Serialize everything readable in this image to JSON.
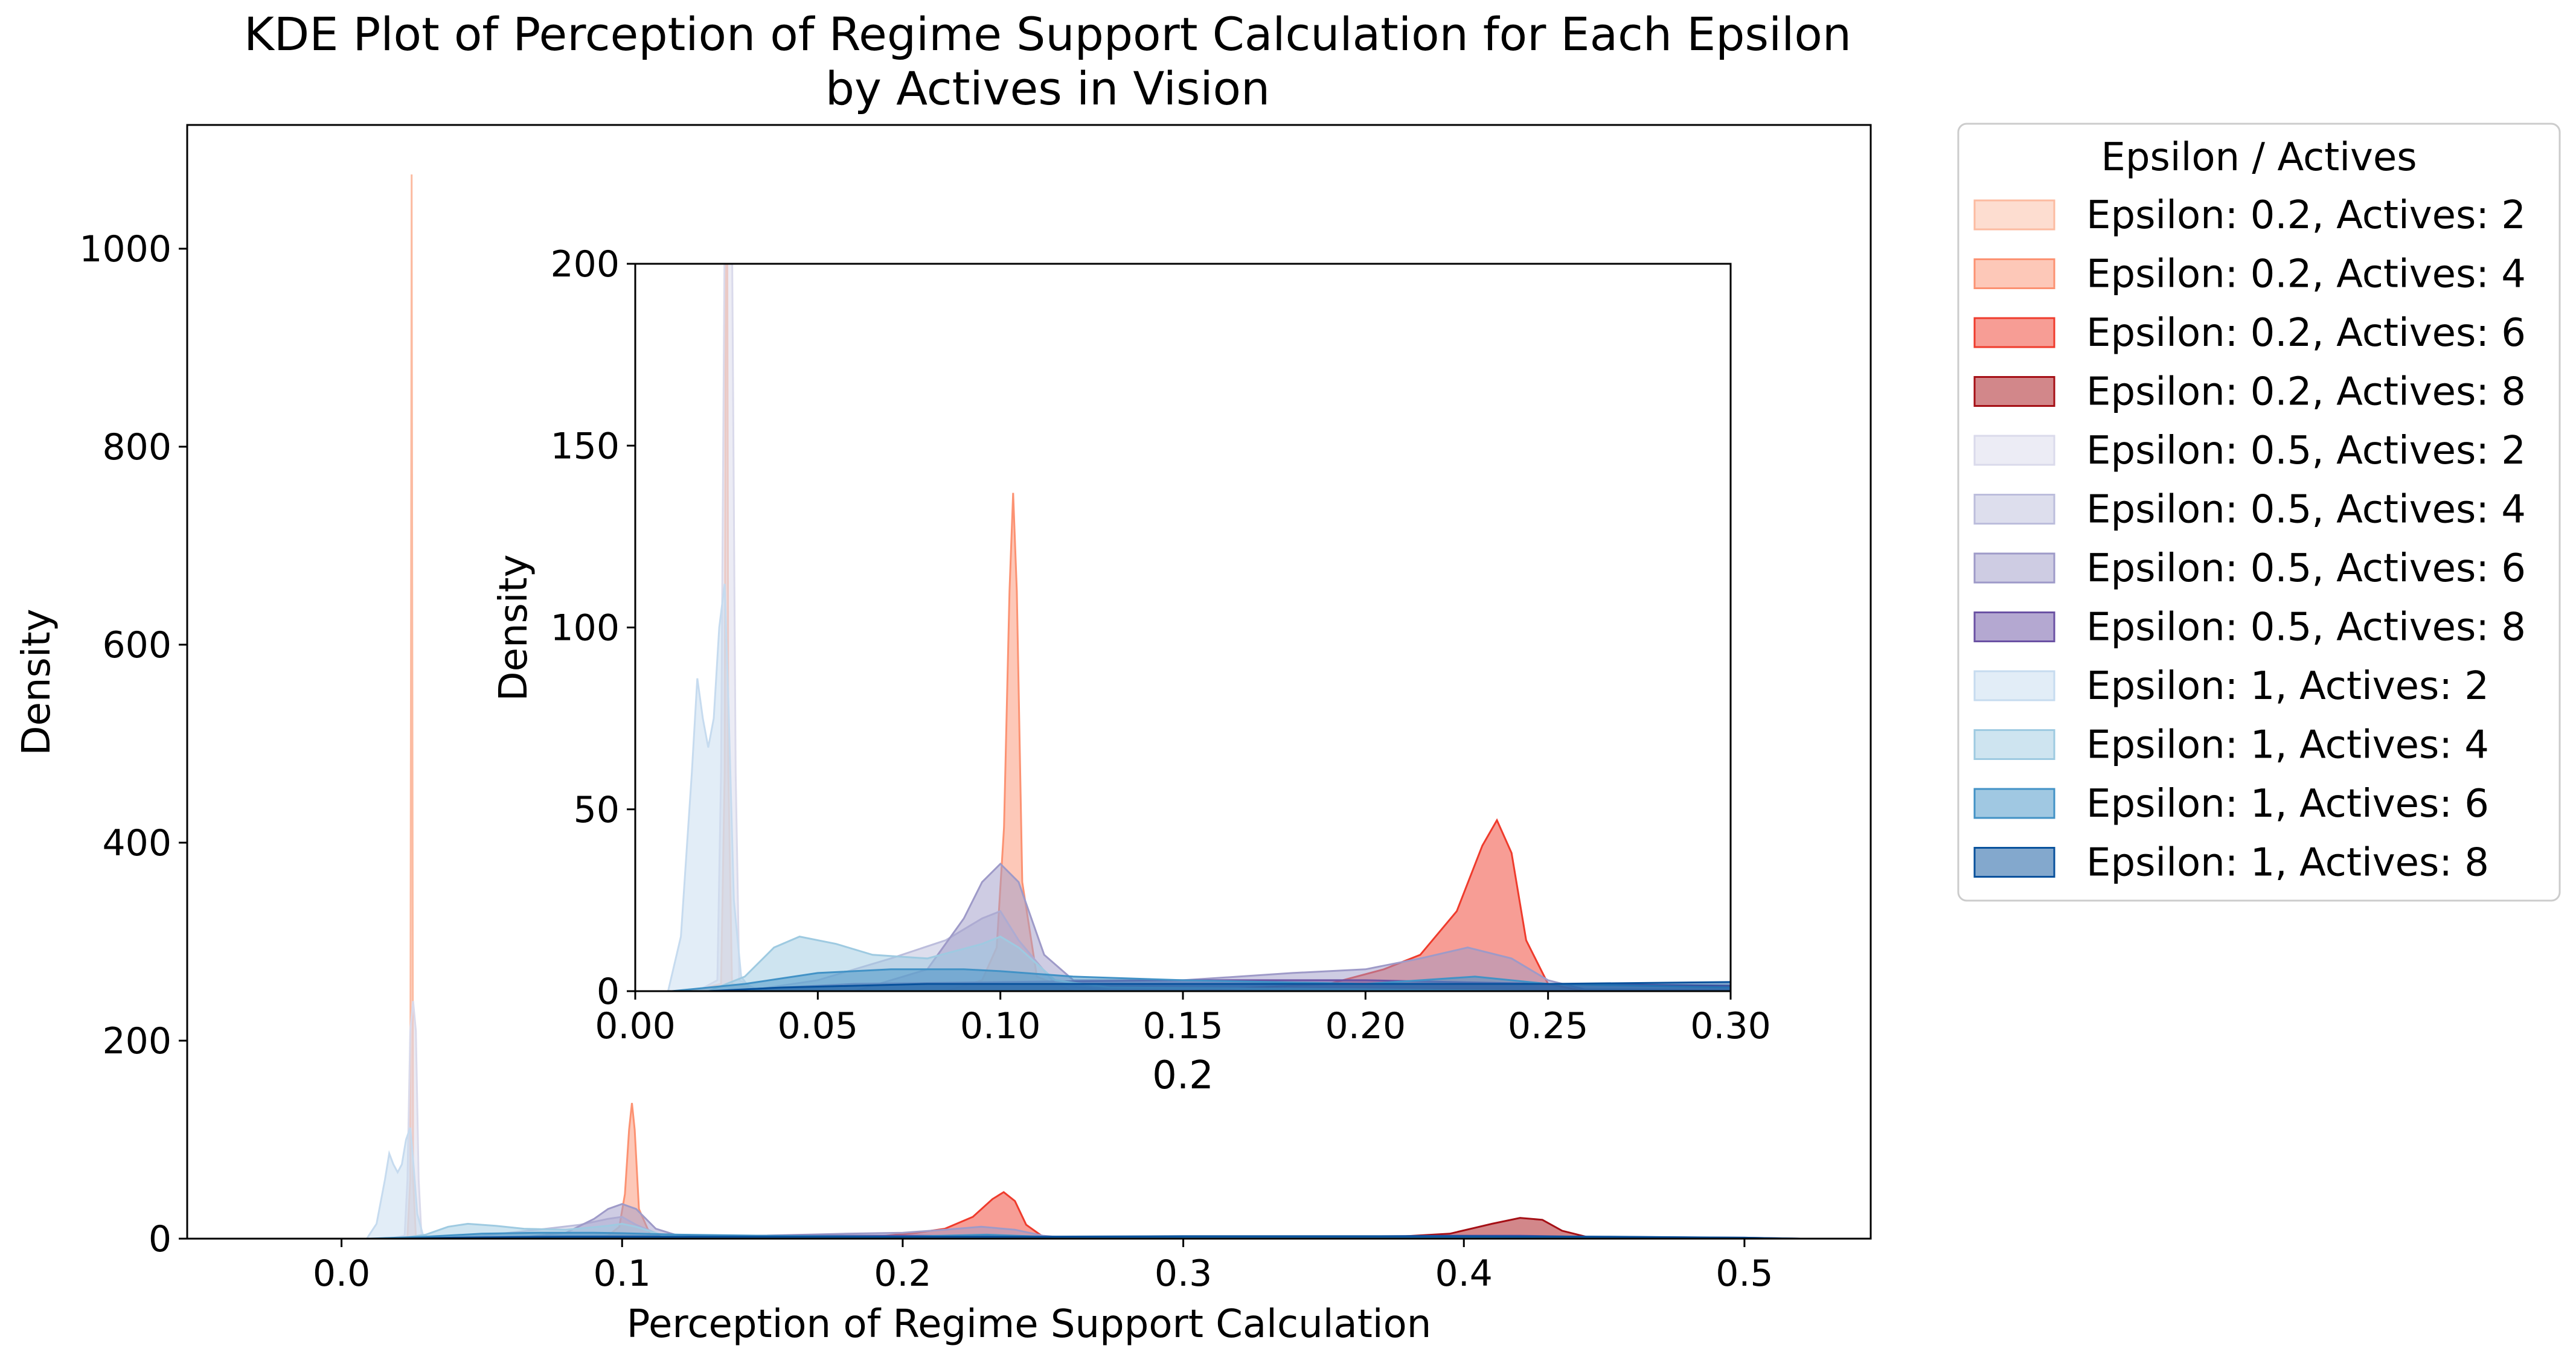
{
  "chart_data": [
    {
      "type": "area",
      "id": "main",
      "title_line1": "KDE Plot of Perception of Regime Support Calculation for Each Epsilon",
      "title_line2": "by Actives in Vision",
      "xlabel": "Perception of Regime Support Calculation",
      "ylabel": "Density",
      "xlim": [
        -0.055,
        0.545
      ],
      "ylim": [
        0,
        1125
      ],
      "xticks": [
        0.0,
        0.1,
        0.2,
        0.3,
        0.4,
        0.5
      ],
      "xtick_labels": [
        "0.0",
        "0.1",
        "0.2",
        "0.3",
        "0.4",
        "0.5"
      ],
      "yticks": [
        0,
        200,
        400,
        600,
        800,
        1000
      ],
      "ytick_labels": [
        "0",
        "200",
        "400",
        "600",
        "800",
        "1000"
      ],
      "grid": false
    },
    {
      "type": "area",
      "id": "inset",
      "xlabel": "0.2",
      "ylabel": "Density",
      "xlim": [
        0.0,
        0.3
      ],
      "ylim": [
        0,
        200
      ],
      "xticks": [
        0.0,
        0.05,
        0.1,
        0.15,
        0.2,
        0.25,
        0.3
      ],
      "xtick_labels": [
        "0.00",
        "0.05",
        "0.10",
        "0.15",
        "0.20",
        "0.25",
        "0.30"
      ],
      "yticks": [
        0,
        50,
        100,
        150,
        200
      ],
      "ytick_labels": [
        "0",
        "50",
        "100",
        "150",
        "200"
      ],
      "grid": false
    }
  ],
  "series": [
    {
      "name": "Epsilon: 0.2, Actives: 2",
      "color": "#fcbba1",
      "points": [
        [
          -0.03,
          0
        ],
        [
          0.015,
          0
        ],
        [
          0.0235,
          2
        ],
        [
          0.0245,
          60
        ],
        [
          0.025,
          1075
        ],
        [
          0.0255,
          60
        ],
        [
          0.0265,
          2
        ],
        [
          0.035,
          0
        ],
        [
          0.52,
          0
        ]
      ]
    },
    {
      "name": "Epsilon: 0.2, Actives: 4",
      "color": "#fc9272",
      "points": [
        [
          -0.03,
          0
        ],
        [
          0.085,
          0
        ],
        [
          0.095,
          3
        ],
        [
          0.099,
          12
        ],
        [
          0.101,
          45
        ],
        [
          0.1025,
          110
        ],
        [
          0.1035,
          137
        ],
        [
          0.1045,
          110
        ],
        [
          0.106,
          30
        ],
        [
          0.11,
          4
        ],
        [
          0.12,
          0
        ],
        [
          0.52,
          0
        ]
      ]
    },
    {
      "name": "Epsilon: 0.2, Actives: 6",
      "color": "#ef3b2c",
      "points": [
        [
          -0.03,
          0
        ],
        [
          0.15,
          0
        ],
        [
          0.19,
          2
        ],
        [
          0.205,
          6
        ],
        [
          0.215,
          10
        ],
        [
          0.225,
          22
        ],
        [
          0.232,
          40
        ],
        [
          0.236,
          47
        ],
        [
          0.24,
          38
        ],
        [
          0.244,
          14
        ],
        [
          0.25,
          2
        ],
        [
          0.26,
          0
        ],
        [
          0.52,
          0
        ]
      ]
    },
    {
      "name": "Epsilon: 0.2, Actives: 8",
      "color": "#a50f15",
      "points": [
        [
          -0.03,
          0
        ],
        [
          0.34,
          0
        ],
        [
          0.37,
          1
        ],
        [
          0.395,
          5
        ],
        [
          0.41,
          15
        ],
        [
          0.42,
          21
        ],
        [
          0.428,
          19
        ],
        [
          0.435,
          8
        ],
        [
          0.445,
          1
        ],
        [
          0.455,
          0
        ],
        [
          0.52,
          0
        ]
      ]
    },
    {
      "name": "Epsilon: 0.5, Actives: 2",
      "color": "#dadaeb",
      "points": [
        [
          -0.03,
          0
        ],
        [
          0.017,
          0
        ],
        [
          0.0225,
          3
        ],
        [
          0.0235,
          60
        ],
        [
          0.0245,
          210
        ],
        [
          0.0255,
          240
        ],
        [
          0.0265,
          210
        ],
        [
          0.0275,
          60
        ],
        [
          0.0285,
          3
        ],
        [
          0.034,
          0
        ],
        [
          0.52,
          0
        ]
      ]
    },
    {
      "name": "Epsilon: 0.5, Actives: 4",
      "color": "#bcbddc",
      "points": [
        [
          -0.03,
          0
        ],
        [
          0.03,
          0
        ],
        [
          0.05,
          3
        ],
        [
          0.07,
          9
        ],
        [
          0.085,
          14
        ],
        [
          0.095,
          20
        ],
        [
          0.1,
          22
        ],
        [
          0.105,
          14
        ],
        [
          0.115,
          2
        ],
        [
          0.13,
          0
        ],
        [
          0.52,
          0
        ]
      ]
    },
    {
      "name": "Epsilon: 0.5, Actives: 6",
      "color": "#9e9ac8",
      "points": [
        [
          -0.03,
          0
        ],
        [
          0.06,
          0
        ],
        [
          0.08,
          6
        ],
        [
          0.09,
          20
        ],
        [
          0.095,
          30
        ],
        [
          0.1,
          35
        ],
        [
          0.105,
          30
        ],
        [
          0.112,
          10
        ],
        [
          0.12,
          3
        ],
        [
          0.15,
          3
        ],
        [
          0.18,
          5
        ],
        [
          0.2,
          6
        ],
        [
          0.215,
          9
        ],
        [
          0.228,
          12
        ],
        [
          0.24,
          9
        ],
        [
          0.25,
          3
        ],
        [
          0.26,
          0.5
        ],
        [
          0.52,
          0
        ]
      ]
    },
    {
      "name": "Epsilon: 0.5, Actives: 8",
      "color": "#6a51a3",
      "points": [
        [
          -0.03,
          0
        ],
        [
          0.02,
          0
        ],
        [
          0.06,
          2
        ],
        [
          0.1,
          2.5
        ],
        [
          0.15,
          3
        ],
        [
          0.2,
          3
        ],
        [
          0.25,
          2
        ],
        [
          0.3,
          1.5
        ],
        [
          0.35,
          2
        ],
        [
          0.4,
          3
        ],
        [
          0.42,
          3
        ],
        [
          0.44,
          2
        ],
        [
          0.5,
          1
        ],
        [
          0.52,
          0
        ]
      ]
    },
    {
      "name": "Epsilon: 1, Actives: 2",
      "color": "#c6dbef",
      "points": [
        [
          -0.03,
          0
        ],
        [
          0.009,
          0
        ],
        [
          0.0125,
          15
        ],
        [
          0.0155,
          60
        ],
        [
          0.017,
          86
        ],
        [
          0.0185,
          75
        ],
        [
          0.02,
          67
        ],
        [
          0.0215,
          75
        ],
        [
          0.023,
          100
        ],
        [
          0.0245,
          112
        ],
        [
          0.0255,
          80
        ],
        [
          0.027,
          25
        ],
        [
          0.029,
          4
        ],
        [
          0.032,
          0
        ],
        [
          0.52,
          0
        ]
      ]
    },
    {
      "name": "Epsilon: 1, Actives: 4",
      "color": "#9ecae1",
      "points": [
        [
          -0.03,
          0
        ],
        [
          0.02,
          0
        ],
        [
          0.03,
          4
        ],
        [
          0.038,
          12
        ],
        [
          0.045,
          15
        ],
        [
          0.055,
          13
        ],
        [
          0.065,
          10
        ],
        [
          0.08,
          9
        ],
        [
          0.095,
          13
        ],
        [
          0.1,
          15
        ],
        [
          0.105,
          12
        ],
        [
          0.115,
          3
        ],
        [
          0.13,
          1
        ],
        [
          0.2,
          0.5
        ],
        [
          0.25,
          0
        ],
        [
          0.52,
          0
        ]
      ]
    },
    {
      "name": "Epsilon: 1, Actives: 6",
      "color": "#4292c6",
      "points": [
        [
          -0.03,
          0
        ],
        [
          0.01,
          0
        ],
        [
          0.03,
          2
        ],
        [
          0.05,
          5
        ],
        [
          0.07,
          6
        ],
        [
          0.09,
          6
        ],
        [
          0.1,
          5.5
        ],
        [
          0.12,
          4
        ],
        [
          0.15,
          3
        ],
        [
          0.2,
          2
        ],
        [
          0.23,
          4
        ],
        [
          0.25,
          2
        ],
        [
          0.3,
          1
        ],
        [
          0.4,
          1
        ],
        [
          0.5,
          0.5
        ],
        [
          0.52,
          0
        ]
      ]
    },
    {
      "name": "Epsilon: 1, Actives: 8",
      "color": "#08519c",
      "points": [
        [
          -0.03,
          0
        ],
        [
          0.02,
          0
        ],
        [
          0.04,
          1
        ],
        [
          0.08,
          2
        ],
        [
          0.15,
          2
        ],
        [
          0.2,
          2
        ],
        [
          0.25,
          2
        ],
        [
          0.3,
          2.5
        ],
        [
          0.35,
          2.5
        ],
        [
          0.4,
          2.5
        ],
        [
          0.45,
          2
        ],
        [
          0.5,
          1
        ],
        [
          0.52,
          0
        ]
      ]
    }
  ],
  "legend": {
    "title": "Epsilon / Actives",
    "placement": "outside-right",
    "entries": [
      "Epsilon: 0.2, Actives: 2",
      "Epsilon: 0.2, Actives: 4",
      "Epsilon: 0.2, Actives: 6",
      "Epsilon: 0.2, Actives: 8",
      "Epsilon: 0.5, Actives: 2",
      "Epsilon: 0.5, Actives: 4",
      "Epsilon: 0.5, Actives: 6",
      "Epsilon: 0.5, Actives: 8",
      "Epsilon: 1, Actives: 2",
      "Epsilon: 1, Actives: 4",
      "Epsilon: 1, Actives: 6",
      "Epsilon: 1, Actives: 8"
    ]
  }
}
